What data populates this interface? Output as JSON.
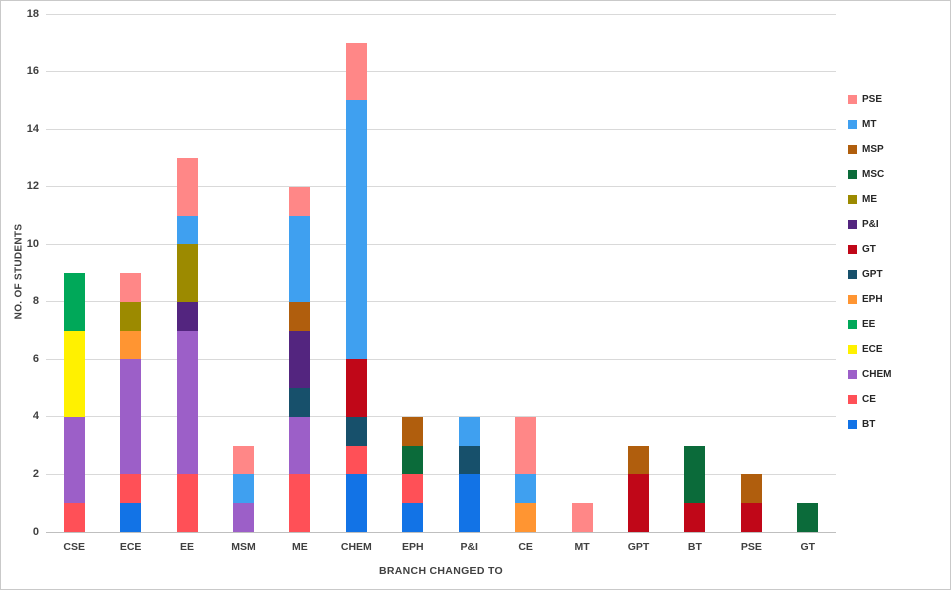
{
  "chart_data": {
    "type": "bar",
    "stacked": true,
    "title": "",
    "xlabel": "BRANCH CHANGED TO",
    "ylabel": "NO. OF STUDENTS",
    "ylim": [
      0,
      18
    ],
    "ytick_step": 2,
    "grid": true,
    "legend_position": "right",
    "gridline_color": "#d9d9d9",
    "categories": [
      "CSE",
      "ECE",
      "EE",
      "MSM",
      "ME",
      "CHEM",
      "EPH",
      "P&I",
      "CE",
      "MT",
      "GPT",
      "BT",
      "PSE",
      "GT"
    ],
    "series": [
      {
        "name": "BT",
        "color": "#1273E6",
        "values": [
          0,
          1,
          0,
          0,
          0,
          2,
          1,
          2,
          0,
          0,
          0,
          0,
          0,
          0
        ]
      },
      {
        "name": "CE",
        "color": "#FF5057",
        "values": [
          1,
          1,
          2,
          0,
          2,
          1,
          1,
          0,
          0,
          0,
          0,
          0,
          0,
          0
        ]
      },
      {
        "name": "CHEM",
        "color": "#9C5FC8",
        "values": [
          3,
          4,
          5,
          1,
          2,
          0,
          0,
          0,
          0,
          0,
          0,
          0,
          0,
          0
        ]
      },
      {
        "name": "ECE",
        "color": "#FFF100",
        "values": [
          3,
          0,
          0,
          0,
          0,
          0,
          0,
          0,
          0,
          0,
          0,
          0,
          0,
          0
        ]
      },
      {
        "name": "EE",
        "color": "#00A859",
        "values": [
          2,
          0,
          0,
          0,
          0,
          0,
          0,
          0,
          0,
          0,
          0,
          0,
          0,
          0
        ]
      },
      {
        "name": "EPH",
        "color": "#FF9532",
        "values": [
          0,
          1,
          0,
          0,
          0,
          0,
          0,
          0,
          1,
          0,
          0,
          0,
          0,
          0
        ]
      },
      {
        "name": "GPT",
        "color": "#17506B",
        "values": [
          0,
          0,
          0,
          0,
          1,
          1,
          0,
          1,
          0,
          0,
          0,
          0,
          0,
          0
        ]
      },
      {
        "name": "GT",
        "color": "#C00718",
        "values": [
          0,
          0,
          0,
          0,
          0,
          2,
          0,
          0,
          0,
          0,
          2,
          1,
          1,
          0
        ]
      },
      {
        "name": "P&I",
        "color": "#53257F",
        "values": [
          0,
          0,
          1,
          0,
          2,
          0,
          0,
          0,
          0,
          0,
          0,
          0,
          0,
          0
        ]
      },
      {
        "name": "ME",
        "color": "#9C8A00",
        "values": [
          0,
          1,
          2,
          0,
          0,
          0,
          0,
          0,
          0,
          0,
          0,
          0,
          0,
          0
        ]
      },
      {
        "name": "MSC",
        "color": "#0B6B3A",
        "values": [
          0,
          0,
          0,
          0,
          0,
          0,
          1,
          0,
          0,
          0,
          0,
          2,
          0,
          1
        ]
      },
      {
        "name": "MSP",
        "color": "#B05E0D",
        "values": [
          0,
          0,
          0,
          0,
          1,
          0,
          1,
          0,
          0,
          0,
          1,
          0,
          1,
          0
        ]
      },
      {
        "name": "MT",
        "color": "#3FA0F0",
        "values": [
          0,
          0,
          1,
          1,
          3,
          9,
          0,
          1,
          1,
          0,
          0,
          0,
          0,
          0
        ]
      },
      {
        "name": "PSE",
        "color": "#FF8787",
        "values": [
          0,
          1,
          2,
          1,
          1,
          2,
          0,
          0,
          2,
          1,
          0,
          0,
          0,
          0
        ]
      }
    ]
  }
}
